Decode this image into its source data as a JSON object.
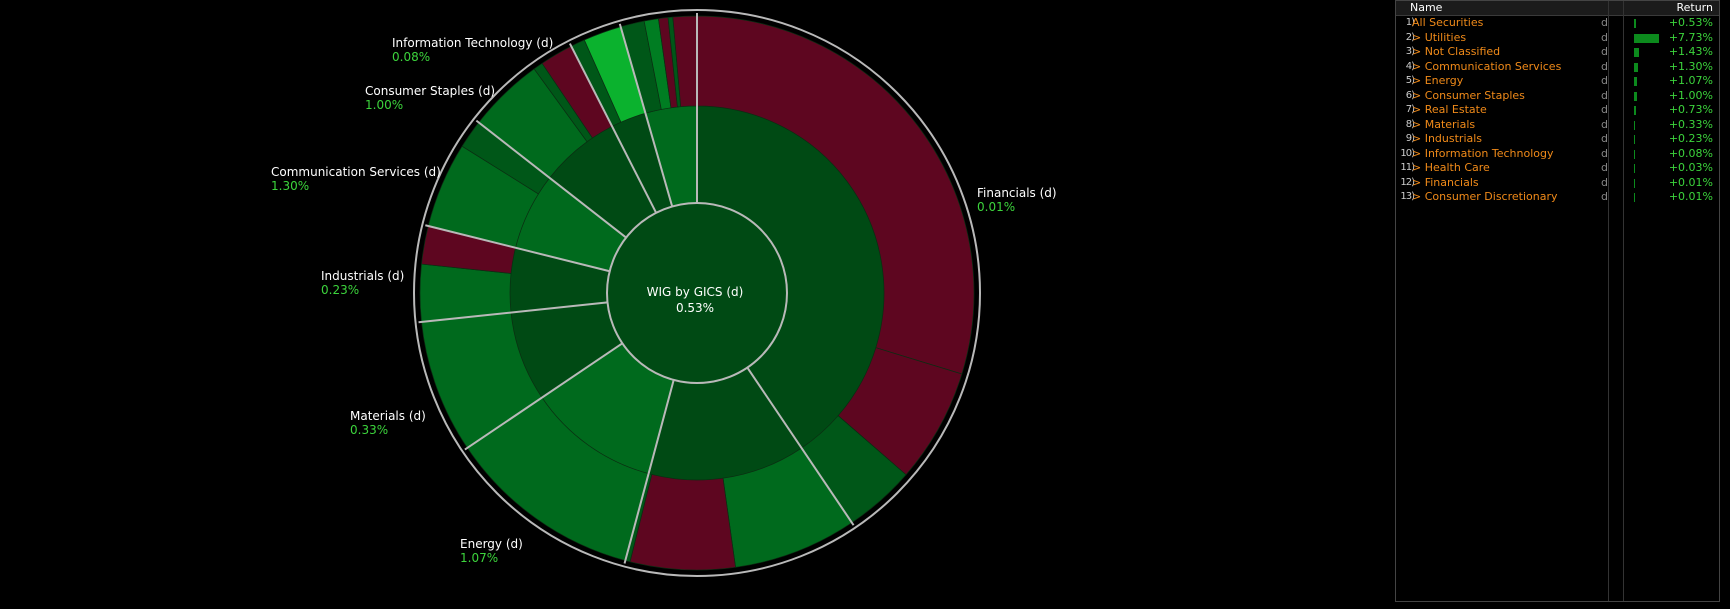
{
  "chart_data": {
    "type": "sunburst",
    "title": "WIG by GICS (d)",
    "center_value": "0.53%",
    "labels": [
      {
        "name": "Information Technology (d)",
        "value": "0.08%"
      },
      {
        "name": "Consumer Staples (d)",
        "value": "1.00%"
      },
      {
        "name": "Communication Services (d)",
        "value": "1.30%"
      },
      {
        "name": "Industrials (d)",
        "value": "0.23%"
      },
      {
        "name": "Materials (d)",
        "value": "0.33%"
      },
      {
        "name": "Energy (d)",
        "value": "1.07%"
      },
      {
        "name": "Financials (d)",
        "value": "0.01%"
      }
    ],
    "colors": {
      "inner": "#004a14",
      "dark_green": "#005718",
      "green": "#006a1d",
      "bright_green": "#0bb22e",
      "mid_green": "#007d22",
      "red": "#5e0620",
      "divider": "#b9b9b9"
    }
  },
  "legend": {
    "header_name": "Name",
    "header_return": "Return",
    "rows": [
      {
        "num": "1)",
        "name": "All Securities",
        "d": "d",
        "ret": "+0.53%",
        "value": 0.53
      },
      {
        "num": "2)",
        "name": "> Utilities",
        "d": "d",
        "ret": "+7.73%",
        "value": 7.73
      },
      {
        "num": "3)",
        "name": "> Not Classified",
        "d": "d",
        "ret": "+1.43%",
        "value": 1.43
      },
      {
        "num": "4)",
        "name": "> Communication Services",
        "d": "d",
        "ret": "+1.30%",
        "value": 1.3
      },
      {
        "num": "5)",
        "name": "> Energy",
        "d": "d",
        "ret": "+1.07%",
        "value": 1.07
      },
      {
        "num": "6)",
        "name": "> Consumer Staples",
        "d": "d",
        "ret": "+1.00%",
        "value": 1.0
      },
      {
        "num": "7)",
        "name": "> Real Estate",
        "d": "d",
        "ret": "+0.73%",
        "value": 0.73
      },
      {
        "num": "8)",
        "name": "> Materials",
        "d": "d",
        "ret": "+0.33%",
        "value": 0.33
      },
      {
        "num": "9)",
        "name": "> Industrials",
        "d": "d",
        "ret": "+0.23%",
        "value": 0.23
      },
      {
        "num": "10)",
        "name": "> Information Technology",
        "d": "d",
        "ret": "+0.08%",
        "value": 0.08
      },
      {
        "num": "11)",
        "name": "> Health Care",
        "d": "d",
        "ret": "+0.03%",
        "value": 0.03
      },
      {
        "num": "12)",
        "name": "> Financials",
        "d": "d",
        "ret": "+0.01%",
        "value": 0.01
      },
      {
        "num": "13)",
        "name": "> Consumer Discretionary",
        "d": "d",
        "ret": "+0.01%",
        "value": 0.01
      }
    ]
  }
}
